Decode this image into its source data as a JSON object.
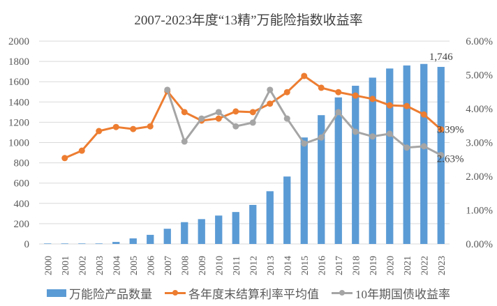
{
  "chart_data": {
    "type": "bar+line",
    "title": "2007-2023年度“13精”万能险指数收益率",
    "categories": [
      "2000",
      "2001",
      "2002",
      "2003",
      "2004",
      "2005",
      "2006",
      "2007",
      "2008",
      "2009",
      "2010",
      "2011",
      "2012",
      "2013",
      "2014",
      "2015",
      "2016",
      "2017",
      "2018",
      "2019",
      "2020",
      "2021",
      "2022",
      "2023"
    ],
    "y_left": {
      "range": [
        0,
        2000
      ],
      "ticks": [
        "0",
        "200",
        "400",
        "600",
        "800",
        "1000",
        "1200",
        "1400",
        "1600",
        "1800",
        "2000"
      ]
    },
    "y_right": {
      "range": [
        0,
        6
      ],
      "unit": "%",
      "ticks": [
        "0.00%",
        "1.00%",
        "2.00%",
        "3.00%",
        "4.00%",
        "5.00%",
        "6.00%"
      ]
    },
    "grid": true,
    "legend_position": "bottom",
    "series": [
      {
        "name": "万能险产品数量",
        "type": "bar",
        "axis": "left",
        "color": "#5B9BD5",
        "values": [
          5,
          5,
          5,
          5,
          20,
          55,
          90,
          150,
          215,
          245,
          280,
          315,
          385,
          520,
          665,
          1050,
          1270,
          1445,
          1560,
          1640,
          1730,
          1760,
          1775,
          1746
        ],
        "data_labels": {
          "2023": "1,746"
        }
      },
      {
        "name": "各年度末结算利率平均值",
        "type": "line",
        "axis": "right",
        "color": "#ED7D31",
        "values": [
          null,
          2.54,
          2.76,
          3.34,
          3.46,
          3.4,
          3.48,
          4.52,
          3.9,
          3.65,
          3.71,
          3.92,
          3.9,
          4.15,
          4.49,
          4.97,
          4.62,
          4.49,
          4.39,
          4.29,
          4.1,
          4.08,
          3.83,
          3.39
        ],
        "data_labels": {
          "2023": "3.39%"
        }
      },
      {
        "name": "10年期国债收益率",
        "type": "line",
        "axis": "right",
        "color": "#A5A5A5",
        "values": [
          null,
          null,
          null,
          null,
          null,
          null,
          null,
          4.56,
          3.03,
          3.71,
          3.9,
          3.48,
          3.59,
          4.56,
          3.71,
          2.97,
          3.15,
          3.9,
          3.32,
          3.18,
          3.26,
          2.85,
          2.89,
          2.63
        ],
        "data_labels": {
          "2023": "2.63%"
        }
      }
    ]
  }
}
